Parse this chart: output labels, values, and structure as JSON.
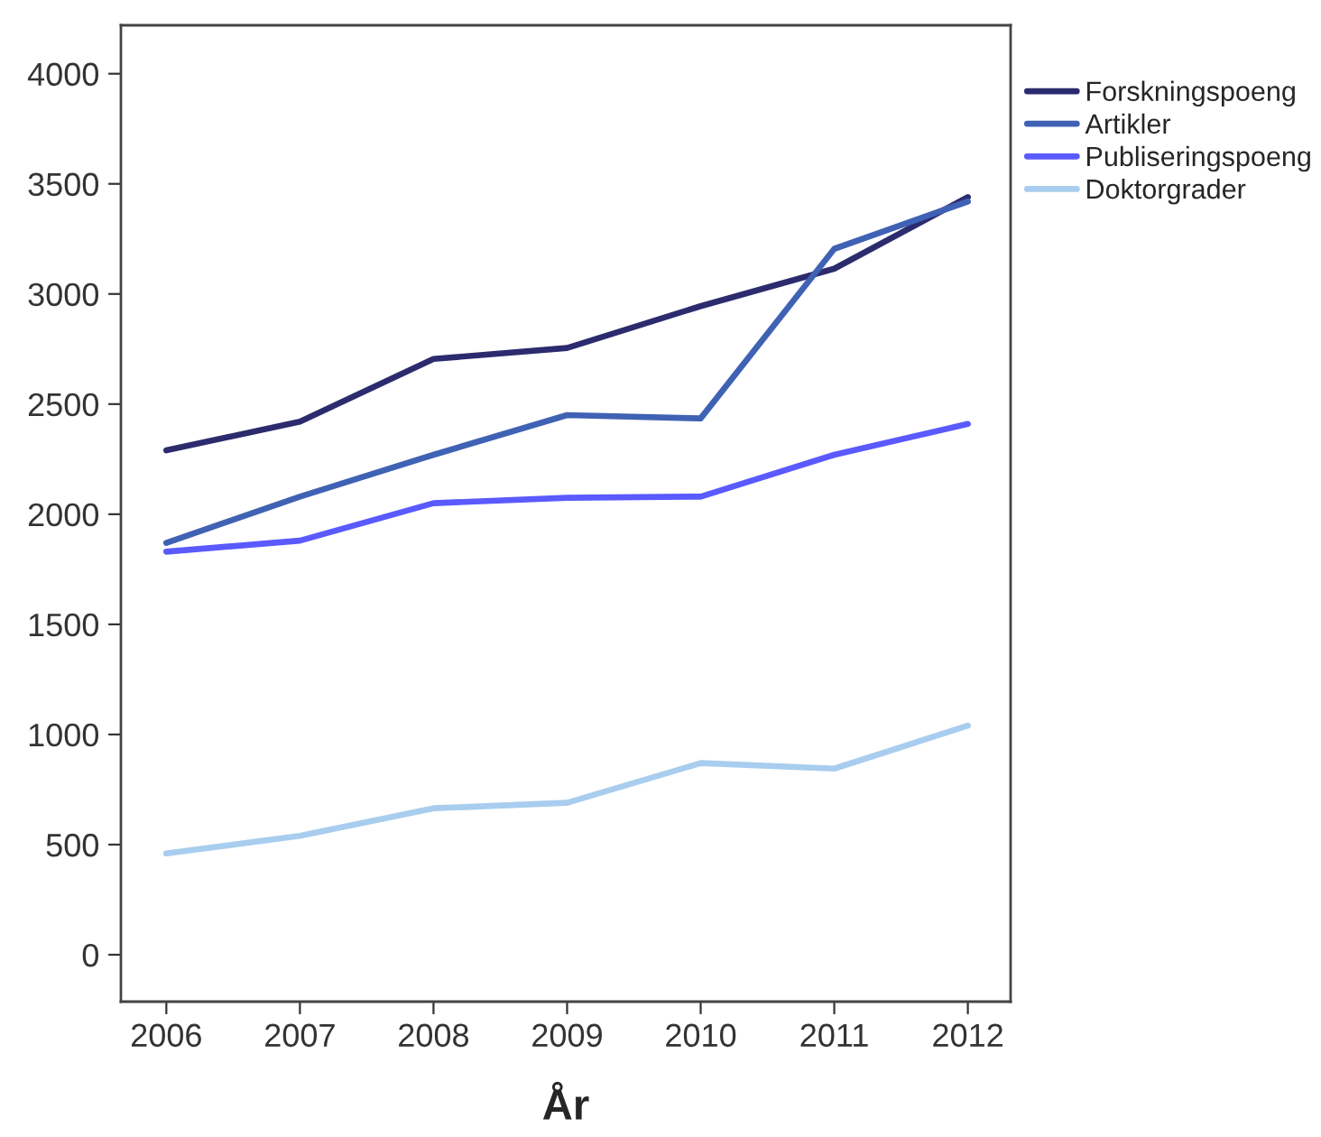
{
  "chart_data": {
    "type": "line",
    "xlabel": "År",
    "x": [
      2006,
      2007,
      2008,
      2009,
      2010,
      2011,
      2012
    ],
    "series": [
      {
        "name": "Forskningspoeng",
        "color": "#2b2b6e",
        "values": [
          2290,
          2420,
          2705,
          2755,
          2945,
          3115,
          3440
        ]
      },
      {
        "name": "Artikler",
        "color": "#3f62b4",
        "values": [
          1870,
          2080,
          2270,
          2450,
          2435,
          3205,
          3420
        ]
      },
      {
        "name": "Publiseringspoeng",
        "color": "#5a5aff",
        "values": [
          1830,
          1880,
          2050,
          2075,
          2080,
          2270,
          2410
        ]
      },
      {
        "name": "Doktorgrader",
        "color": "#a8cdee",
        "values": [
          460,
          540,
          665,
          690,
          870,
          845,
          1040
        ]
      }
    ],
    "xlim": [
      2005.66,
      2012.32
    ],
    "xticks": [
      2006,
      2007,
      2008,
      2009,
      2010,
      2011,
      2012
    ],
    "ylim": [
      -213,
      4220
    ],
    "yticks": [
      0,
      500,
      1000,
      1500,
      2000,
      2500,
      3000,
      3500,
      4000
    ],
    "grid": false,
    "legend": "top right",
    "marker": "none",
    "line_style": "solid"
  }
}
